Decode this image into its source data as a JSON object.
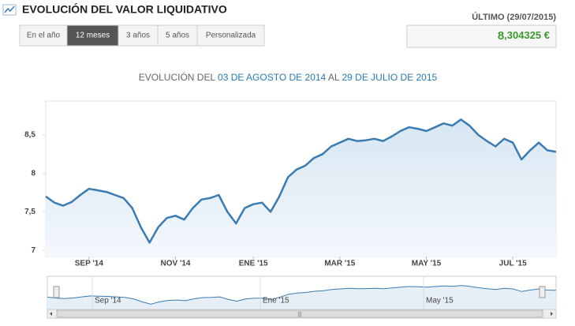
{
  "header": {
    "title": "EVOLUCIÓN DEL VALOR LIQUIDATIVO",
    "tabs": [
      "En el año",
      "12 meses",
      "3 años",
      "5 años",
      "Personalizada"
    ],
    "last_label": "ÚLTIMO (29/07/2015)",
    "last_value": {
      "integer": "8",
      "decimals": ",304325 €"
    }
  },
  "chart_data": {
    "type": "line",
    "title": [
      "EVOLUCIÓN DEL ",
      "03 DE AGOSTO DE 2014",
      " AL ",
      "29 DE JULIO DE 2015"
    ],
    "categories": [
      null,
      null,
      null,
      null,
      null,
      "SEP '14",
      null,
      null,
      null,
      null,
      null,
      null,
      null,
      null,
      null,
      "NOV '14",
      null,
      null,
      null,
      null,
      null,
      null,
      null,
      null,
      "ENE '15",
      null,
      null,
      null,
      null,
      null,
      null,
      null,
      null,
      null,
      "MAR '15",
      null,
      null,
      null,
      null,
      null,
      null,
      null,
      null,
      null,
      "MAY '15",
      null,
      null,
      null,
      null,
      null,
      null,
      null,
      null,
      null,
      "JUL '15",
      null,
      null,
      null,
      null,
      null
    ],
    "series": [
      {
        "color": "#3a7cb2",
        "values": [
          7.7,
          7.62,
          7.58,
          7.63,
          7.72,
          7.8,
          7.78,
          7.76,
          7.72,
          7.68,
          7.55,
          7.3,
          7.1,
          7.3,
          7.42,
          7.45,
          7.4,
          7.55,
          7.66,
          7.68,
          7.72,
          7.5,
          7.35,
          7.55,
          7.6,
          7.62,
          7.5,
          7.7,
          7.95,
          8.05,
          8.1,
          8.2,
          8.25,
          8.35,
          8.4,
          8.45,
          8.42,
          8.43,
          8.45,
          8.42,
          8.48,
          8.55,
          8.6,
          8.58,
          8.55,
          8.6,
          8.65,
          8.62,
          8.7,
          8.62,
          8.5,
          8.42,
          8.35,
          8.45,
          8.4,
          8.18,
          8.3,
          8.4,
          8.3,
          8.28
        ]
      }
    ],
    "ylim": [
      6.92,
      8.94
    ],
    "yticks": [
      7,
      {
        "value": 7.5,
        "label": "7,5"
      },
      8,
      {
        "value": 8.5,
        "label": "8,5"
      }
    ]
  },
  "navigator": {
    "labels": [
      "Sep '14",
      "Ene '15",
      "May '15"
    ]
  }
}
